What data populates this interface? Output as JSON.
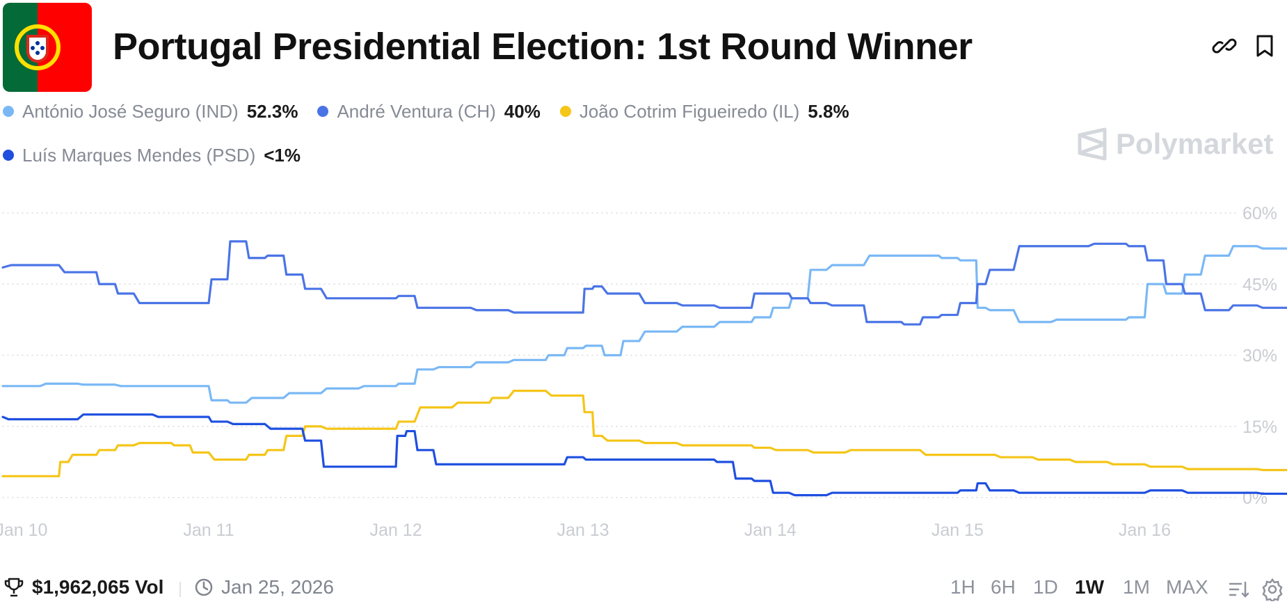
{
  "header": {
    "title": "Portugal Presidential Election: 1st Round Winner",
    "flag": "portugal-flag",
    "icons": [
      "link-icon",
      "bookmark-icon"
    ]
  },
  "legend": [
    {
      "name": "António José Seguro (IND)",
      "value": "52.3%",
      "color": "#7ab8f5"
    },
    {
      "name": "André Ventura (CH)",
      "value": "40%",
      "color": "#4a74e6"
    },
    {
      "name": "João Cotrim Figueiredo (IL)",
      "value": "5.8%",
      "color": "#f5c518"
    },
    {
      "name": "Luís Marques Mendes (PSD)",
      "value": "<1%",
      "color": "#1e4fe0"
    }
  ],
  "watermark": "Polymarket",
  "chart_data": {
    "type": "line",
    "x_unit": "days from Jan 10",
    "x_range": [
      -0.1,
      6.5
    ],
    "y_range": [
      0,
      60
    ],
    "y_ticks": [
      0,
      15,
      30,
      45,
      60
    ],
    "y_tick_labels": [
      "0%",
      "15%",
      "30%",
      "45%",
      "60%"
    ],
    "x_ticks": [
      0,
      1,
      2,
      3,
      4,
      5,
      6
    ],
    "x_tick_labels": [
      "Jan 10",
      "Jan 11",
      "Jan 12",
      "Jan 13",
      "Jan 14",
      "Jan 15",
      "Jan 16"
    ],
    "grid": "horizontal-dotted",
    "series": [
      {
        "name": "António José Seguro (IND)",
        "color": "#7ab8f5",
        "points": [
          [
            -0.1,
            23.5
          ],
          [
            0.1,
            23.5
          ],
          [
            0.3,
            24
          ],
          [
            0.5,
            23.8
          ],
          [
            0.7,
            23.5
          ],
          [
            1.0,
            23.5
          ],
          [
            1.1,
            20.5
          ],
          [
            1.2,
            20
          ],
          [
            1.4,
            21
          ],
          [
            1.6,
            22
          ],
          [
            1.8,
            23
          ],
          [
            2.0,
            23.5
          ],
          [
            2.1,
            24
          ],
          [
            2.2,
            27
          ],
          [
            2.4,
            27.5
          ],
          [
            2.6,
            28.5
          ],
          [
            2.8,
            29
          ],
          [
            2.9,
            30
          ],
          [
            3.0,
            31.5
          ],
          [
            3.1,
            32
          ],
          [
            3.2,
            30
          ],
          [
            3.3,
            33
          ],
          [
            3.5,
            35
          ],
          [
            3.7,
            36
          ],
          [
            3.9,
            37
          ],
          [
            4.0,
            38
          ],
          [
            4.1,
            40
          ],
          [
            4.2,
            42
          ],
          [
            4.3,
            48
          ],
          [
            4.5,
            49
          ],
          [
            4.7,
            51
          ],
          [
            4.9,
            51
          ],
          [
            5.0,
            50.5
          ],
          [
            5.1,
            50
          ],
          [
            5.15,
            40
          ],
          [
            5.3,
            39.5
          ],
          [
            5.5,
            37
          ],
          [
            5.7,
            37.5
          ],
          [
            5.9,
            37.5
          ],
          [
            6.0,
            38
          ],
          [
            6.1,
            45
          ],
          [
            6.2,
            43
          ],
          [
            6.3,
            47
          ],
          [
            6.45,
            51
          ],
          [
            6.6,
            53
          ],
          [
            6.8,
            52.5
          ],
          [
            6.87,
            52.3
          ]
        ]
      },
      {
        "name": "André Ventura (CH)",
        "color": "#4a74e6",
        "points": [
          [
            -0.1,
            48.5
          ],
          [
            0.2,
            49
          ],
          [
            0.4,
            47.5
          ],
          [
            0.5,
            45
          ],
          [
            0.6,
            43
          ],
          [
            0.8,
            41
          ],
          [
            1.0,
            41
          ],
          [
            1.1,
            46
          ],
          [
            1.2,
            54
          ],
          [
            1.3,
            50.5
          ],
          [
            1.4,
            51
          ],
          [
            1.5,
            47
          ],
          [
            1.6,
            44
          ],
          [
            1.8,
            42
          ],
          [
            2.0,
            42
          ],
          [
            2.1,
            42.5
          ],
          [
            2.2,
            40
          ],
          [
            2.4,
            40
          ],
          [
            2.6,
            39.5
          ],
          [
            2.8,
            39
          ],
          [
            3.0,
            39
          ],
          [
            3.05,
            44
          ],
          [
            3.1,
            44.5
          ],
          [
            3.3,
            43
          ],
          [
            3.5,
            41
          ],
          [
            3.7,
            40.5
          ],
          [
            3.9,
            40
          ],
          [
            4.0,
            43
          ],
          [
            4.1,
            43
          ],
          [
            4.2,
            42
          ],
          [
            4.3,
            41
          ],
          [
            4.5,
            40.5
          ],
          [
            4.6,
            37
          ],
          [
            4.7,
            37
          ],
          [
            4.8,
            36.5
          ],
          [
            4.9,
            38
          ],
          [
            5.0,
            38.5
          ],
          [
            5.1,
            41
          ],
          [
            5.15,
            45
          ],
          [
            5.3,
            48
          ],
          [
            5.5,
            53
          ],
          [
            5.7,
            53
          ],
          [
            5.9,
            53.5
          ],
          [
            6.0,
            53
          ],
          [
            6.1,
            50
          ],
          [
            6.2,
            45
          ],
          [
            6.3,
            43
          ],
          [
            6.45,
            39.5
          ],
          [
            6.6,
            40.5
          ],
          [
            6.8,
            40
          ],
          [
            6.87,
            40
          ]
        ]
      },
      {
        "name": "João Cotrim Figueiredo (IL)",
        "color": "#f5c518",
        "points": [
          [
            -0.1,
            4.5
          ],
          [
            0.2,
            4.5
          ],
          [
            0.25,
            7.5
          ],
          [
            0.4,
            9
          ],
          [
            0.5,
            10
          ],
          [
            0.6,
            11
          ],
          [
            0.8,
            11.5
          ],
          [
            0.9,
            11
          ],
          [
            1.0,
            9.5
          ],
          [
            1.2,
            8
          ],
          [
            1.3,
            9
          ],
          [
            1.4,
            10
          ],
          [
            1.5,
            13
          ],
          [
            1.6,
            15
          ],
          [
            1.8,
            14.5
          ],
          [
            2.0,
            14.5
          ],
          [
            2.1,
            16
          ],
          [
            2.3,
            19
          ],
          [
            2.5,
            20
          ],
          [
            2.6,
            21
          ],
          [
            2.8,
            22.5
          ],
          [
            3.0,
            21.5
          ],
          [
            3.05,
            18
          ],
          [
            3.1,
            13
          ],
          [
            3.3,
            12
          ],
          [
            3.5,
            11.5
          ],
          [
            3.7,
            11
          ],
          [
            3.9,
            11
          ],
          [
            4.0,
            10.5
          ],
          [
            4.2,
            10
          ],
          [
            4.4,
            9.5
          ],
          [
            4.6,
            10
          ],
          [
            4.8,
            10
          ],
          [
            5.0,
            9
          ],
          [
            5.2,
            9
          ],
          [
            5.4,
            8.5
          ],
          [
            5.6,
            8
          ],
          [
            5.8,
            7.5
          ],
          [
            6.0,
            7
          ],
          [
            6.2,
            6.5
          ],
          [
            6.4,
            6
          ],
          [
            6.6,
            6
          ],
          [
            6.8,
            5.8
          ],
          [
            6.87,
            5.8
          ]
        ]
      },
      {
        "name": "Luís Marques Mendes (PSD)",
        "color": "#1e4fe0",
        "points": [
          [
            -0.1,
            17
          ],
          [
            0.1,
            16.5
          ],
          [
            0.3,
            16.5
          ],
          [
            0.5,
            17.5
          ],
          [
            0.7,
            17.5
          ],
          [
            0.9,
            17
          ],
          [
            1.0,
            17
          ],
          [
            1.1,
            16
          ],
          [
            1.3,
            15.5
          ],
          [
            1.5,
            14.5
          ],
          [
            1.6,
            12
          ],
          [
            1.7,
            6.5
          ],
          [
            1.9,
            6.5
          ],
          [
            2.0,
            6.5
          ],
          [
            2.05,
            13
          ],
          [
            2.1,
            14
          ],
          [
            2.2,
            10
          ],
          [
            2.3,
            7
          ],
          [
            2.5,
            7
          ],
          [
            2.7,
            7
          ],
          [
            2.9,
            7
          ],
          [
            3.0,
            8.5
          ],
          [
            3.1,
            8
          ],
          [
            3.3,
            8
          ],
          [
            3.5,
            8
          ],
          [
            3.7,
            8
          ],
          [
            3.8,
            7.5
          ],
          [
            3.9,
            4
          ],
          [
            4.0,
            3.5
          ],
          [
            4.1,
            1
          ],
          [
            4.3,
            0.5
          ],
          [
            4.5,
            1
          ],
          [
            4.7,
            1
          ],
          [
            4.9,
            1
          ],
          [
            5.0,
            1
          ],
          [
            5.1,
            1.5
          ],
          [
            5.15,
            3
          ],
          [
            5.3,
            1.5
          ],
          [
            5.5,
            1
          ],
          [
            5.7,
            1
          ],
          [
            5.9,
            1
          ],
          [
            6.0,
            1
          ],
          [
            6.2,
            1.5
          ],
          [
            6.4,
            1
          ],
          [
            6.6,
            1
          ],
          [
            6.8,
            0.8
          ],
          [
            6.87,
            0.8
          ]
        ]
      }
    ]
  },
  "footer": {
    "volume": "$1,962,065 Vol",
    "date": "Jan 25, 2026",
    "ranges": [
      "1H",
      "6H",
      "1D",
      "1W",
      "1M",
      "MAX"
    ],
    "active_range": "1W",
    "icons": [
      "trophy-icon",
      "clock-icon",
      "sort-icon",
      "gear-icon"
    ]
  }
}
